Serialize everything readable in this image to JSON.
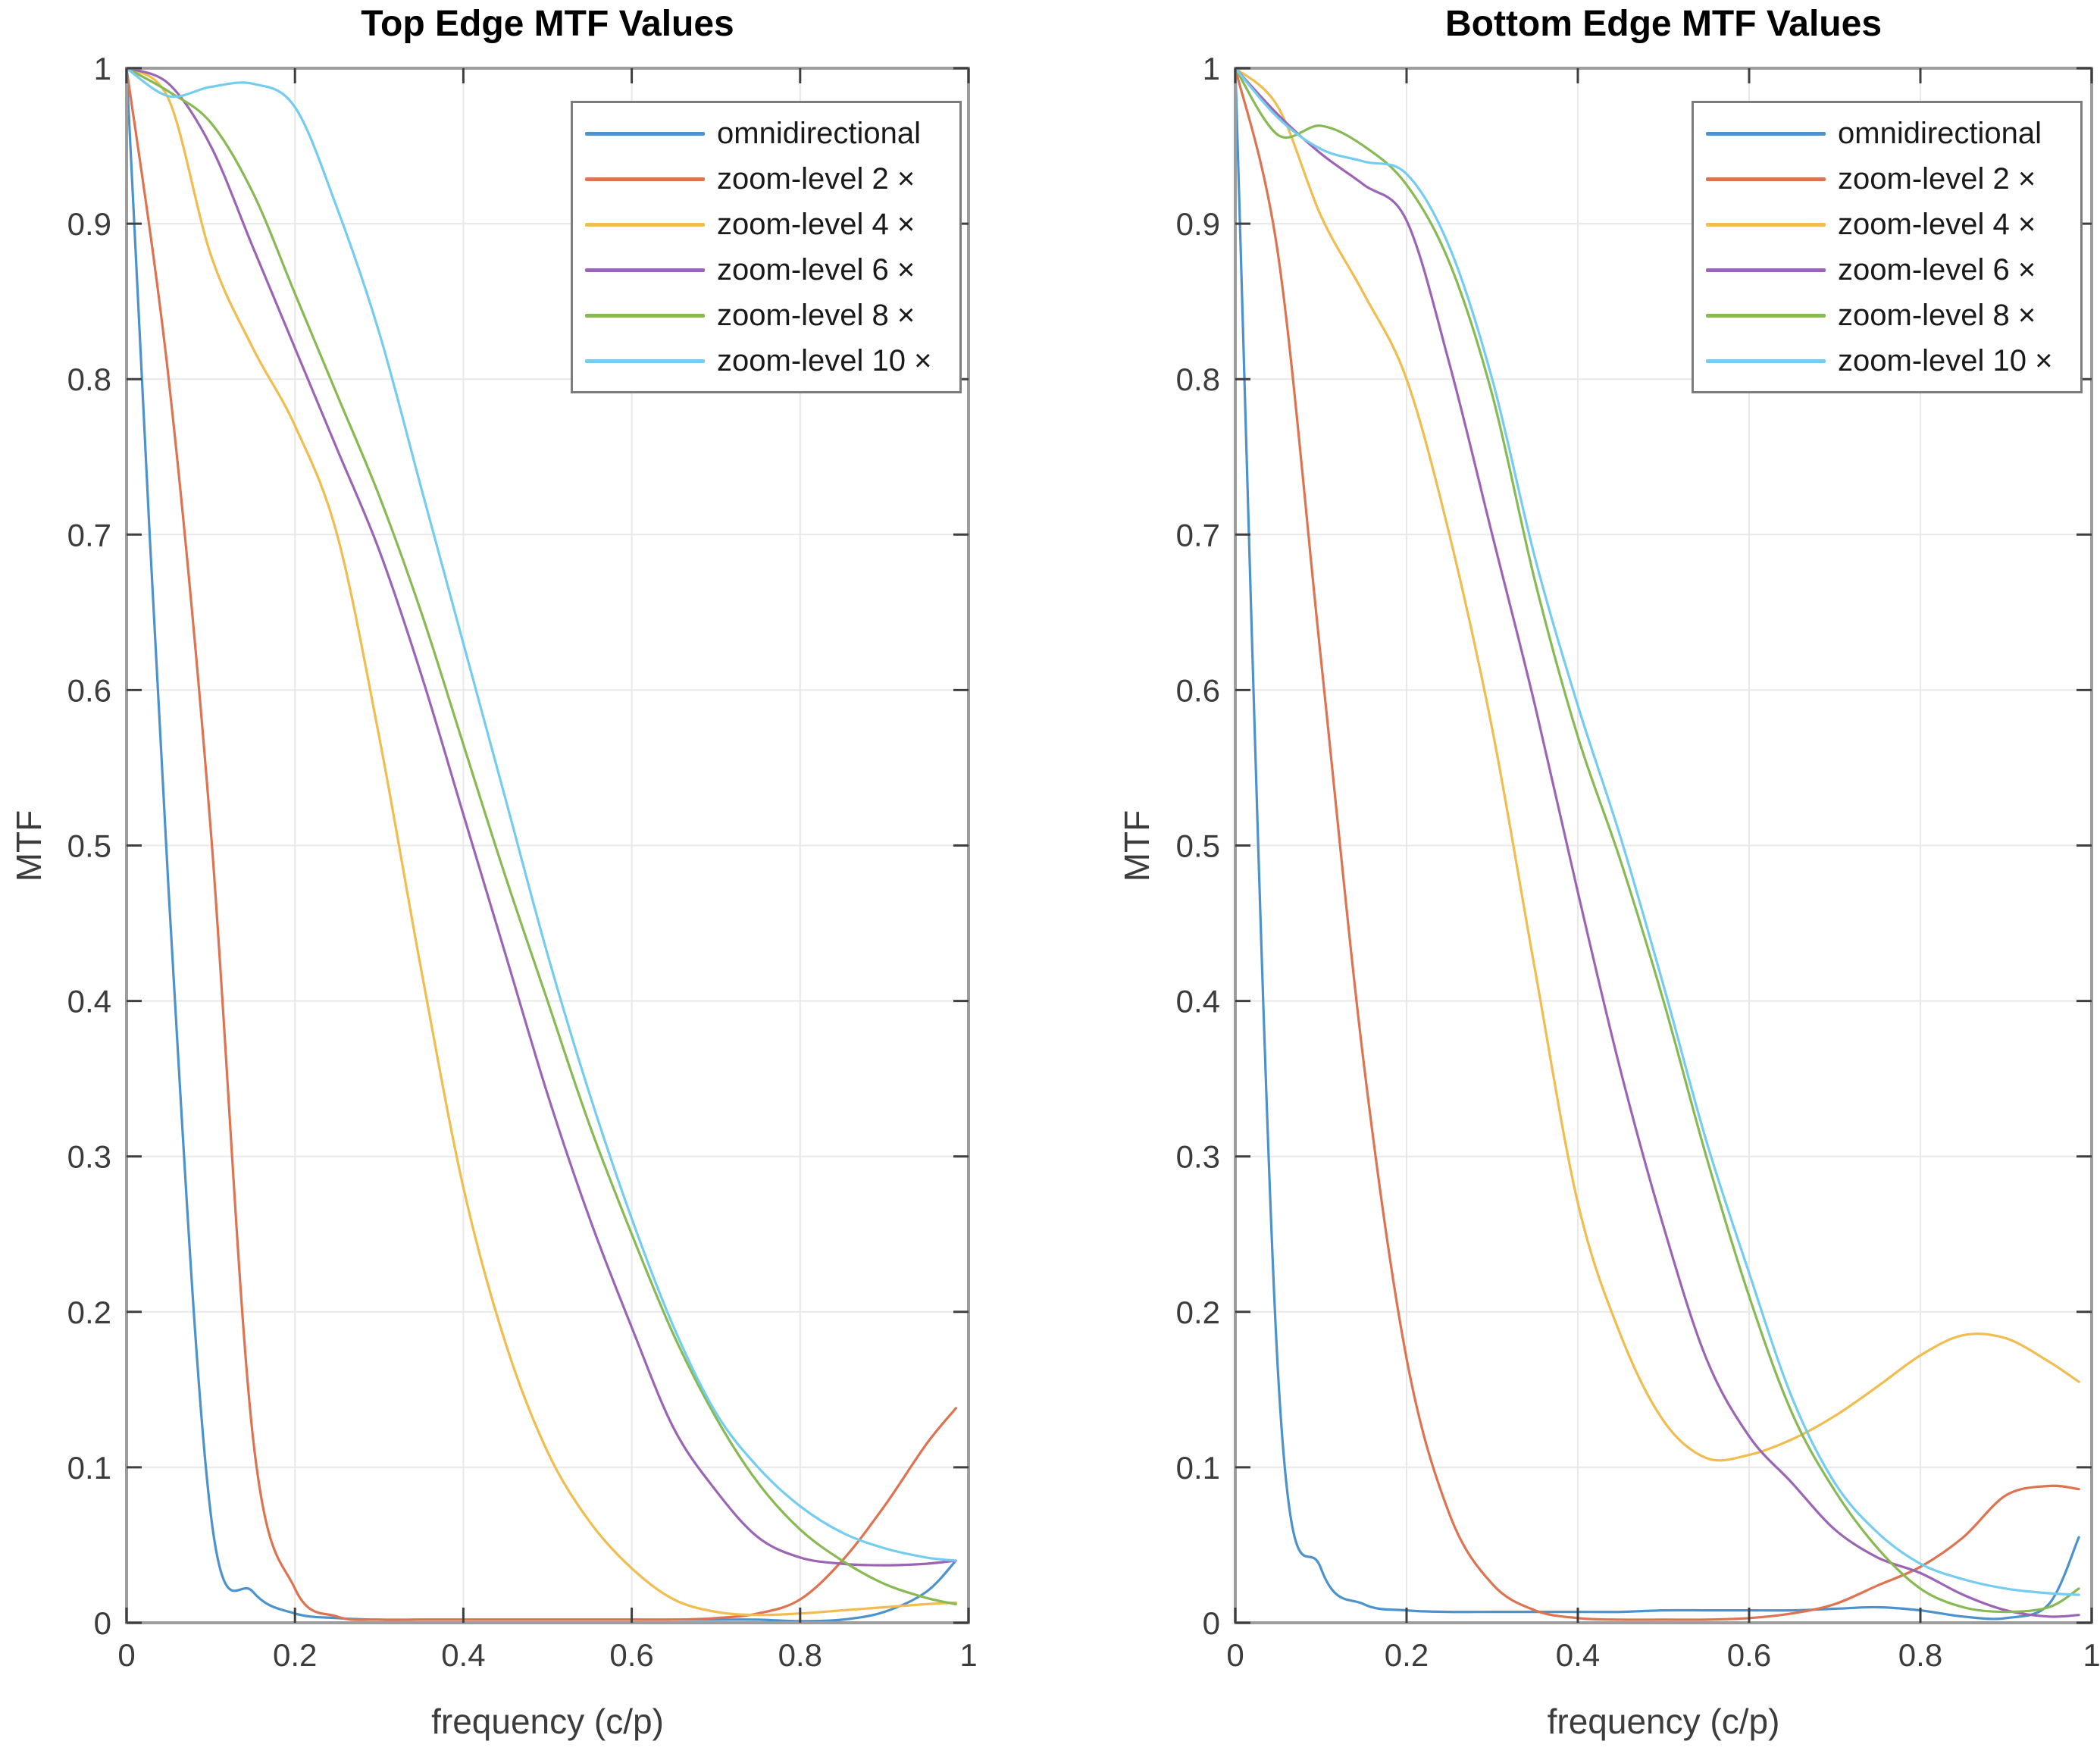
{
  "figure": {
    "background": "#ffffff"
  },
  "styles": {
    "grid_color": "#e8e8e8",
    "box_color": "#9d9d9d",
    "tick_color": "#3f3f3f",
    "tick_label_color": "#3c3c3c",
    "axis_label_color": "#3c3c3c",
    "title_color": "#000000",
    "legend_border_color": "#7c7c7c",
    "series_colors": [
      "#4C92CC",
      "#DD7350",
      "#F0BD4E",
      "#9C64B4",
      "#87BA52",
      "#74CDF0"
    ]
  },
  "chart_data": [
    {
      "type": "line",
      "title": "Top Edge MTF Values",
      "xlabel": "frequency (c/p)",
      "ylabel": "MTF",
      "xlim": [
        0,
        1
      ],
      "ylim": [
        0,
        1
      ],
      "xticks": [
        0,
        0.2,
        0.4,
        0.6,
        0.8,
        1
      ],
      "yticks": [
        0,
        0.1,
        0.2,
        0.3,
        0.4,
        0.5,
        0.6,
        0.7,
        0.8,
        0.9,
        1
      ],
      "grid": true,
      "legend_position": "top-right",
      "x": [
        0,
        0.05,
        0.1,
        0.15,
        0.2,
        0.25,
        0.3,
        0.35,
        0.4,
        0.45,
        0.5,
        0.55,
        0.6,
        0.65,
        0.7,
        0.75,
        0.8,
        0.85,
        0.9,
        0.95,
        0.985
      ],
      "series": [
        {
          "name": "omnidirectional",
          "color": "#4C92CC",
          "values": [
            1,
            0.47,
            0.07,
            0.02,
            0.006,
            0.003,
            0.002,
            0.002,
            0.002,
            0.002,
            0.002,
            0.002,
            0.002,
            0.002,
            0.002,
            0.002,
            0.001,
            0.002,
            0.007,
            0.02,
            0.04
          ]
        },
        {
          "name": "zoom-level 2 ×",
          "color": "#DD7350",
          "values": [
            1,
            0.8,
            0.51,
            0.12,
            0.022,
            0.004,
            0.002,
            0.002,
            0.002,
            0.002,
            0.002,
            0.002,
            0.002,
            0.002,
            0.003,
            0.006,
            0.015,
            0.04,
            0.075,
            0.115,
            0.138
          ]
        },
        {
          "name": "zoom-level 4 ×",
          "color": "#F0BD4E",
          "values": [
            1,
            0.98,
            0.88,
            0.82,
            0.77,
            0.7,
            0.57,
            0.42,
            0.28,
            0.18,
            0.11,
            0.065,
            0.035,
            0.015,
            0.007,
            0.005,
            0.006,
            0.008,
            0.01,
            0.012,
            0.013
          ]
        },
        {
          "name": "zoom-level 6 ×",
          "color": "#9C64B4",
          "values": [
            1,
            0.99,
            0.95,
            0.885,
            0.82,
            0.755,
            0.69,
            0.61,
            0.52,
            0.43,
            0.34,
            0.26,
            0.19,
            0.125,
            0.085,
            0.055,
            0.042,
            0.038,
            0.037,
            0.038,
            0.04
          ]
        },
        {
          "name": "zoom-level 8 ×",
          "color": "#87BA52",
          "values": [
            1,
            0.985,
            0.965,
            0.92,
            0.855,
            0.79,
            0.725,
            0.65,
            0.565,
            0.48,
            0.4,
            0.32,
            0.25,
            0.185,
            0.132,
            0.09,
            0.06,
            0.04,
            0.025,
            0.016,
            0.012
          ]
        },
        {
          "name": "zoom-level 10 ×",
          "color": "#74CDF0",
          "values": [
            1,
            0.982,
            0.988,
            0.99,
            0.975,
            0.91,
            0.83,
            0.73,
            0.63,
            0.53,
            0.43,
            0.34,
            0.26,
            0.19,
            0.135,
            0.1,
            0.075,
            0.058,
            0.048,
            0.042,
            0.04
          ]
        }
      ]
    },
    {
      "type": "line",
      "title": "Bottom Edge MTF Values",
      "xlabel": "frequency (c/p)",
      "ylabel": "MTF",
      "xlim": [
        0,
        1
      ],
      "ylim": [
        0,
        1
      ],
      "xticks": [
        0,
        0.2,
        0.4,
        0.6,
        0.8,
        1
      ],
      "yticks": [
        0,
        0.1,
        0.2,
        0.3,
        0.4,
        0.5,
        0.6,
        0.7,
        0.8,
        0.9,
        1
      ],
      "grid": true,
      "legend_position": "top-right",
      "x": [
        0,
        0.05,
        0.1,
        0.15,
        0.2,
        0.25,
        0.3,
        0.35,
        0.4,
        0.45,
        0.5,
        0.55,
        0.6,
        0.65,
        0.7,
        0.75,
        0.8,
        0.85,
        0.9,
        0.95,
        0.985
      ],
      "series": [
        {
          "name": "omnidirectional",
          "color": "#4C92CC",
          "values": [
            1,
            0.16,
            0.035,
            0.012,
            0.008,
            0.007,
            0.007,
            0.007,
            0.007,
            0.007,
            0.008,
            0.008,
            0.008,
            0.008,
            0.009,
            0.01,
            0.008,
            0.004,
            0.003,
            0.012,
            0.055
          ]
        },
        {
          "name": "zoom-level 2 ×",
          "color": "#DD7350",
          "values": [
            1,
            0.88,
            0.62,
            0.36,
            0.17,
            0.07,
            0.025,
            0.008,
            0.003,
            0.002,
            0.002,
            0.002,
            0.003,
            0.006,
            0.012,
            0.024,
            0.036,
            0.055,
            0.082,
            0.088,
            0.086
          ]
        },
        {
          "name": "zoom-level 4 ×",
          "color": "#F0BD4E",
          "values": [
            1,
            0.975,
            0.905,
            0.855,
            0.8,
            0.7,
            0.575,
            0.42,
            0.27,
            0.185,
            0.13,
            0.106,
            0.108,
            0.118,
            0.133,
            0.152,
            0.172,
            0.185,
            0.183,
            0.168,
            0.155
          ]
        },
        {
          "name": "zoom-level 6 ×",
          "color": "#9C64B4",
          "values": [
            1,
            0.97,
            0.945,
            0.925,
            0.902,
            0.81,
            0.7,
            0.59,
            0.47,
            0.355,
            0.255,
            0.17,
            0.12,
            0.09,
            0.06,
            0.042,
            0.032,
            0.018,
            0.008,
            0.004,
            0.005
          ]
        },
        {
          "name": "zoom-level 8 ×",
          "color": "#87BA52",
          "values": [
            1,
            0.957,
            0.963,
            0.95,
            0.925,
            0.875,
            0.79,
            0.67,
            0.57,
            0.49,
            0.4,
            0.3,
            0.21,
            0.135,
            0.085,
            0.048,
            0.022,
            0.01,
            0.007,
            0.01,
            0.022
          ]
        },
        {
          "name": "zoom-level 10 ×",
          "color": "#74CDF0",
          "values": [
            1,
            0.968,
            0.948,
            0.94,
            0.932,
            0.885,
            0.8,
            0.685,
            0.59,
            0.505,
            0.41,
            0.31,
            0.225,
            0.145,
            0.09,
            0.058,
            0.038,
            0.028,
            0.022,
            0.019,
            0.018
          ]
        }
      ]
    }
  ]
}
